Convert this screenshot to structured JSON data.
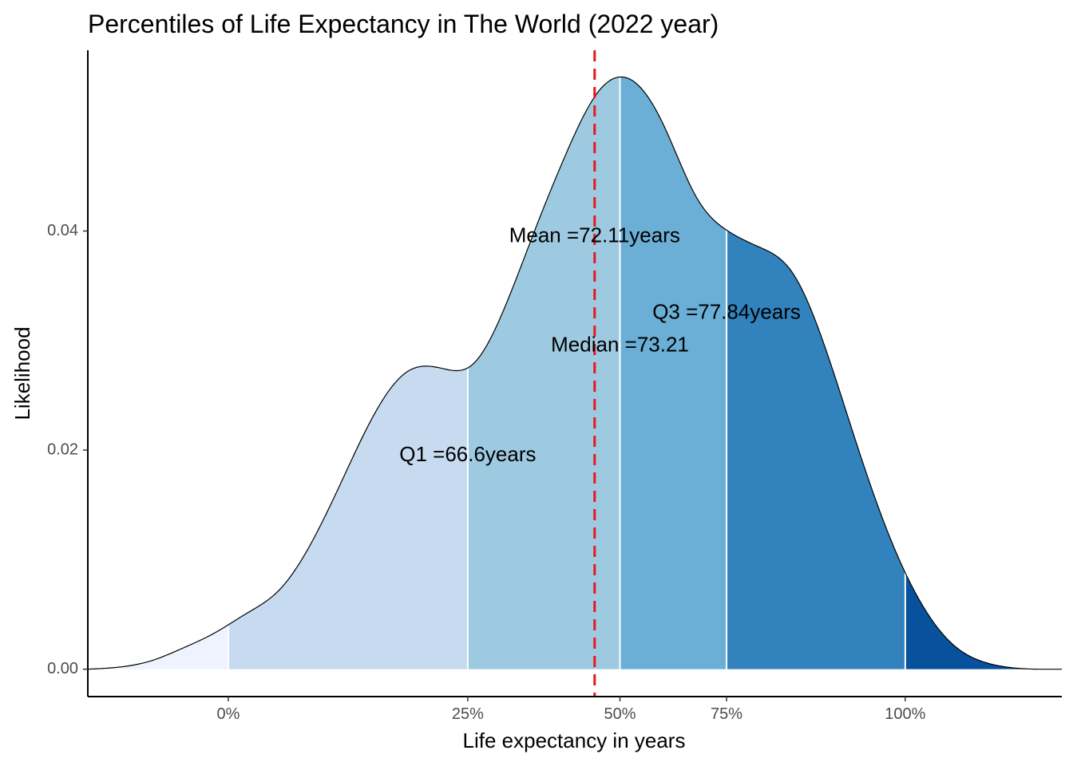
{
  "chart_data": {
    "type": "area",
    "title": "Percentiles of Life Expectancy in The World (2022 year)",
    "xlabel": "Life expectancy in years",
    "ylabel": "Likelihood",
    "xlim": [
      50.1,
      92.4
    ],
    "ylim": [
      -0.0025,
      0.0565
    ],
    "x_ticks": [
      {
        "value": 56.2,
        "label": "0%"
      },
      {
        "value": 66.6,
        "label": "25%"
      },
      {
        "value": 73.21,
        "label": "50%"
      },
      {
        "value": 77.84,
        "label": "75%"
      },
      {
        "value": 85.6,
        "label": "100%"
      }
    ],
    "y_ticks": [
      {
        "value": 0.0,
        "label": "0.00"
      },
      {
        "value": 0.02,
        "label": "0.02"
      },
      {
        "value": 0.04,
        "label": "0.04"
      }
    ],
    "density_curve": {
      "x": [
        50.1,
        51.5,
        52.9,
        54.2,
        55.6,
        57.0,
        58.4,
        59.8,
        61.2,
        62.6,
        64.0,
        65.4,
        66.8,
        68.1,
        69.5,
        70.9,
        72.3,
        73.7,
        75.1,
        76.5,
        77.9,
        79.3,
        80.7,
        82.1,
        83.5,
        84.9,
        86.3,
        87.7,
        89.1,
        90.4,
        92.4
      ],
      "y": [
        0.0,
        0.0002,
        0.0008,
        0.0019,
        0.0033,
        0.0051,
        0.0072,
        0.0115,
        0.0175,
        0.0235,
        0.0272,
        0.0275,
        0.0278,
        0.0325,
        0.04,
        0.0472,
        0.0528,
        0.0538,
        0.0497,
        0.0432,
        0.04,
        0.0385,
        0.0362,
        0.0295,
        0.0205,
        0.0122,
        0.006,
        0.0022,
        0.0006,
        0.0001,
        0.0
      ]
    },
    "bands": [
      {
        "from": 50.1,
        "to": 56.2,
        "color": "#eff3ff"
      },
      {
        "from": 56.2,
        "to": 66.6,
        "color": "#c6dbef"
      },
      {
        "from": 66.6,
        "to": 73.21,
        "color": "#9ecae1"
      },
      {
        "from": 73.21,
        "to": 77.84,
        "color": "#6baed6"
      },
      {
        "from": 77.84,
        "to": 85.6,
        "color": "#3182bd"
      },
      {
        "from": 85.6,
        "to": 92.4,
        "color": "#08519c"
      }
    ],
    "mean_line": {
      "value": 72.11,
      "color": "#e31a1c",
      "style": "dashed"
    },
    "annotations": [
      {
        "text": "Mean =72.11years",
        "x": 72.11,
        "y": 0.0395
      },
      {
        "text": "Median =73.21",
        "x": 73.21,
        "y": 0.0295
      },
      {
        "text": "Q1 =66.6years",
        "x": 66.6,
        "y": 0.0195
      },
      {
        "text": "Q3 =77.84years",
        "x": 77.84,
        "y": 0.0325
      }
    ],
    "grid": false,
    "legend": "none"
  }
}
